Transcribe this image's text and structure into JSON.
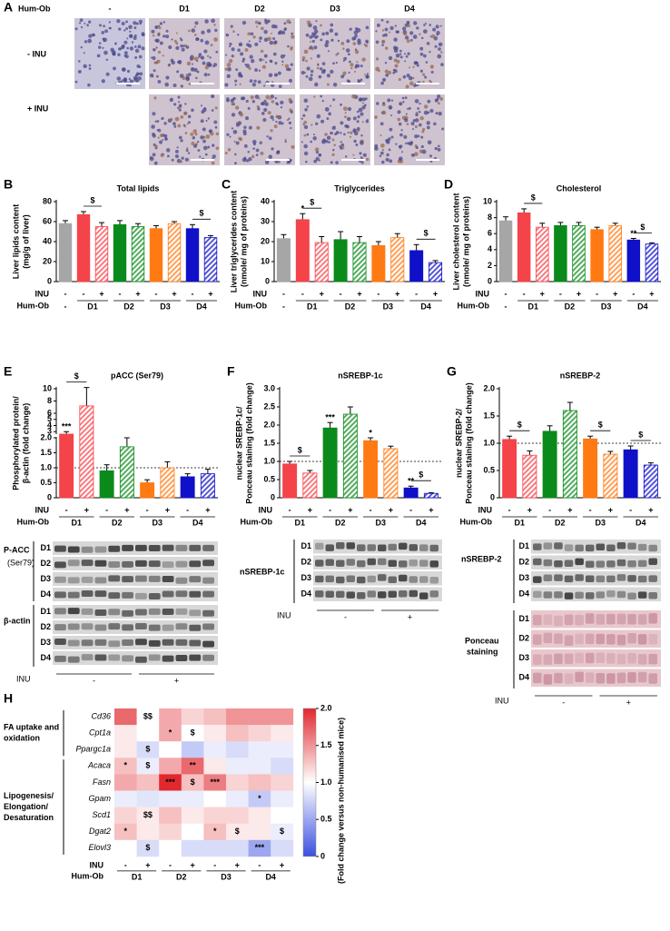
{
  "figure": {
    "panel_a": {
      "letter": "A",
      "hum_ob": "Hum-Ob",
      "columns": [
        "-",
        "D1",
        "D2",
        "D3",
        "D4"
      ],
      "rows": [
        "- INU",
        "+ INU"
      ]
    },
    "blot_e": {
      "labels": [
        "P-ACC",
        "(Ser79)"
      ],
      "loading": "β-actin",
      "lanes": [
        "D1",
        "D2",
        "D3",
        "D4"
      ],
      "inu": "INU",
      "inu_groups": [
        "-",
        "+"
      ]
    },
    "blot_f": {
      "label": "nSREBP-1c",
      "lanes": [
        "D1",
        "D2",
        "D3",
        "D4"
      ],
      "inu": "INU",
      "inu_groups": [
        "-",
        "+"
      ]
    },
    "blot_g": {
      "label": "nSREBP-2",
      "loading": [
        "Ponceau",
        "staining"
      ],
      "lanes": [
        "D1",
        "D2",
        "D3",
        "D4"
      ],
      "inu": "INU",
      "inu_groups": [
        "-",
        "+"
      ]
    }
  },
  "chart_data": [
    {
      "type": "bar",
      "panel": "B",
      "title": "Total lipids",
      "ylabel": [
        "Liver lipids content",
        "(mg/g of liver)"
      ],
      "inu_label": "INU",
      "group_label": "Hum-Ob",
      "categories": [
        "-",
        "-",
        "+",
        "-",
        "+",
        "-",
        "+",
        "-",
        "+"
      ],
      "groups": [
        "-",
        "D1",
        "D2",
        "D3",
        "D4"
      ],
      "values": [
        58,
        67,
        55,
        57,
        55,
        53,
        58,
        53,
        44
      ],
      "errors": [
        3,
        3,
        4,
        4,
        3,
        3,
        2,
        4,
        2
      ],
      "colors": [
        "#a6a6a6",
        "#f5434a",
        "#f5434a",
        "#0a8a1a",
        "#0a8a1a",
        "#ff7a12",
        "#ff7a12",
        "#1010c8",
        "#1010c8"
      ],
      "hatched": [
        false,
        false,
        true,
        false,
        true,
        false,
        true,
        false,
        true
      ],
      "annotations": [
        null,
        null,
        "$",
        null,
        null,
        null,
        null,
        null,
        "$"
      ],
      "ylim": [
        0,
        80
      ],
      "yticks": [
        0,
        20,
        40,
        60,
        80
      ]
    },
    {
      "type": "bar",
      "panel": "C",
      "title": "Triglycerides",
      "ylabel": [
        "Liver triglycerides content",
        "(nmole/ mg of proteins)"
      ],
      "inu_label": "INU",
      "group_label": "Hum-Ob",
      "categories": [
        "-",
        "-",
        "+",
        "-",
        "+",
        "-",
        "+",
        "-",
        "+"
      ],
      "groups": [
        "-",
        "D1",
        "D2",
        "D3",
        "D4"
      ],
      "values": [
        21.5,
        31,
        19.5,
        21,
        19.5,
        18,
        22,
        15.5,
        9.5
      ],
      "errors": [
        2,
        3,
        3,
        4,
        3,
        2,
        2,
        3,
        1
      ],
      "colors": [
        "#a6a6a6",
        "#f5434a",
        "#f5434a",
        "#0a8a1a",
        "#0a8a1a",
        "#ff7a12",
        "#ff7a12",
        "#1010c8",
        "#1010c8"
      ],
      "hatched": [
        false,
        false,
        true,
        false,
        true,
        false,
        true,
        false,
        true
      ],
      "annotations": [
        null,
        "*",
        "$",
        null,
        null,
        null,
        null,
        null,
        "$"
      ],
      "ylim": [
        0,
        40
      ],
      "yticks": [
        0,
        10,
        20,
        30,
        40
      ]
    },
    {
      "type": "bar",
      "panel": "D",
      "title": "Cholesterol",
      "ylabel": [
        "Liver cholesterol content",
        "(nmole/ mg of proteins)"
      ],
      "inu_label": "INU",
      "group_label": "Hum-Ob",
      "categories": [
        "-",
        "-",
        "+",
        "-",
        "+",
        "-",
        "+",
        "-",
        "+"
      ],
      "groups": [
        "-",
        "D1",
        "D2",
        "D3",
        "D4"
      ],
      "values": [
        7.6,
        8.6,
        6.8,
        7.0,
        7.0,
        6.5,
        7.0,
        5.2,
        4.7
      ],
      "errors": [
        0.5,
        0.5,
        0.5,
        0.4,
        0.4,
        0.3,
        0.3,
        0.2,
        0.15
      ],
      "colors": [
        "#a6a6a6",
        "#f5434a",
        "#f5434a",
        "#0a8a1a",
        "#0a8a1a",
        "#ff7a12",
        "#ff7a12",
        "#1010c8",
        "#1010c8"
      ],
      "hatched": [
        false,
        false,
        true,
        false,
        true,
        false,
        true,
        false,
        true
      ],
      "annotations": [
        null,
        null,
        "$",
        null,
        null,
        null,
        null,
        "**",
        "$"
      ],
      "ylim": [
        0,
        10
      ],
      "yticks": [
        0,
        2,
        4,
        6,
        8,
        10
      ]
    },
    {
      "type": "bar",
      "panel": "E",
      "title": "pACC (Ser79)",
      "ylabel": [
        "Phosphorylated protein/",
        "β-actin (fold change)"
      ],
      "inu_label": "INU",
      "group_label": "Hum-Ob",
      "categories": [
        "-",
        "+",
        "-",
        "+",
        "-",
        "+",
        "-",
        "+"
      ],
      "groups": [
        "D1",
        "D2",
        "D3",
        "D4"
      ],
      "values": [
        2.6,
        7.2,
        0.9,
        1.7,
        0.5,
        1.0,
        0.7,
        0.8
      ],
      "errors": [
        0.4,
        3,
        0.2,
        0.3,
        0.1,
        0.2,
        0.1,
        0.15
      ],
      "colors": [
        "#f5434a",
        "#f5434a",
        "#0a8a1a",
        "#0a8a1a",
        "#ff7a12",
        "#ff7a12",
        "#1010c8",
        "#1010c8"
      ],
      "hatched": [
        false,
        true,
        false,
        true,
        false,
        true,
        false,
        true
      ],
      "annotations": [
        "***",
        "$",
        null,
        null,
        null,
        null,
        null,
        null
      ],
      "ylim": [
        0,
        10
      ],
      "ybreak": 2,
      "yticks": [
        0,
        0.5,
        {
          "value": 1,
          "label": "1.0"
        },
        1.5,
        {
          "value": 2,
          "label": "2.0"
        },
        3,
        4,
        5,
        6,
        8,
        10
      ],
      "reference_line": 1
    },
    {
      "type": "bar",
      "panel": "F",
      "title": "nSREBP-1c",
      "ylabel": [
        "nuclear SREBP-1c/",
        "Ponceau staining (fold change)"
      ],
      "inu_label": "INU",
      "group_label": "Hum-Ob",
      "categories": [
        "-",
        "+",
        "-",
        "+",
        "-",
        "+",
        "-",
        "+"
      ],
      "groups": [
        "D1",
        "D2",
        "D3",
        "D4"
      ],
      "values": [
        0.93,
        0.68,
        1.92,
        2.3,
        1.57,
        1.35,
        0.27,
        0.12
      ],
      "errors": [
        0.07,
        0.07,
        0.15,
        0.2,
        0.08,
        0.07,
        0.05,
        0.02
      ],
      "colors": [
        "#f5434a",
        "#f5434a",
        "#0a8a1a",
        "#0a8a1a",
        "#ff7a12",
        "#ff7a12",
        "#1010c8",
        "#1010c8"
      ],
      "hatched": [
        false,
        true,
        false,
        true,
        false,
        true,
        false,
        true
      ],
      "annotations": [
        null,
        "$",
        "***",
        null,
        "*",
        null,
        "**",
        "$"
      ],
      "ylim": [
        0,
        3
      ],
      "yticks": [
        0,
        0.5,
        {
          "value": 1,
          "label": "1.0"
        },
        1.5,
        {
          "value": 2,
          "label": "2.0"
        },
        2.5,
        {
          "value": 3,
          "label": "3.0"
        }
      ],
      "reference_line": 1
    },
    {
      "type": "bar",
      "panel": "G",
      "title": "nSREBP-2",
      "ylabel": [
        "nuclear SREBP-2/",
        "Ponceau staining (fold change)"
      ],
      "inu_label": "INU",
      "group_label": "Hum-Ob",
      "categories": [
        "-",
        "+",
        "-",
        "+",
        "-",
        "+",
        "-",
        "+"
      ],
      "groups": [
        "D1",
        "D2",
        "D3",
        "D4"
      ],
      "values": [
        1.07,
        0.78,
        1.22,
        1.6,
        1.08,
        0.8,
        0.88,
        0.6
      ],
      "errors": [
        0.06,
        0.08,
        0.1,
        0.15,
        0.05,
        0.05,
        0.07,
        0.04
      ],
      "colors": [
        "#f5434a",
        "#f5434a",
        "#0a8a1a",
        "#0a8a1a",
        "#ff7a12",
        "#ff7a12",
        "#1010c8",
        "#1010c8"
      ],
      "hatched": [
        false,
        true,
        false,
        true,
        false,
        true,
        false,
        true
      ],
      "annotations": [
        null,
        "$",
        null,
        null,
        null,
        "$",
        null,
        "$"
      ],
      "ylim": [
        0,
        2
      ],
      "yticks": [
        0,
        0.5,
        {
          "value": 1,
          "label": "1.0"
        },
        1.5,
        {
          "value": 2,
          "label": "2.0"
        }
      ],
      "reference_line": 1
    },
    {
      "type": "heatmap",
      "panel": "H",
      "rows": [
        "Cd36",
        "Cpt1a",
        "Ppargc1a",
        "Acaca",
        "Fasn",
        "Gpam",
        "Scd1",
        "Dgat2",
        "Elovl3"
      ],
      "row_groups": [
        {
          "label": [
            "FA uptake and",
            "oxidation"
          ],
          "size": 3
        },
        {
          "label": [
            "Lipogenesis/",
            "Elongation/",
            "Desaturation"
          ],
          "size": 6
        }
      ],
      "inu_label": "INU",
      "group_label": "Hum-Ob",
      "categories": [
        "-",
        "+",
        "-",
        "+",
        "-",
        "+",
        "-",
        "+"
      ],
      "groups": [
        "D1",
        "D2",
        "D3",
        "D4"
      ],
      "values": [
        [
          1.7,
          1.0,
          1.4,
          1.2,
          1.3,
          1.5,
          1.5,
          1.5
        ],
        [
          1.1,
          1.0,
          1.4,
          1.0,
          1.1,
          1.3,
          1.2,
          1.1
        ],
        [
          1.1,
          0.8,
          1.0,
          0.7,
          0.9,
          0.8,
          0.9,
          0.9
        ],
        [
          1.3,
          0.9,
          1.4,
          1.7,
          1.1,
          0.9,
          0.9,
          0.8
        ],
        [
          1.4,
          1.3,
          2.0,
          1.3,
          1.6,
          1.2,
          1.3,
          1.2
        ],
        [
          0.9,
          0.85,
          0.9,
          0.9,
          1.0,
          0.9,
          0.7,
          0.9
        ],
        [
          1.2,
          1.1,
          1.3,
          1.1,
          1.2,
          1.2,
          1.1,
          1.0
        ],
        [
          1.3,
          1.1,
          1.2,
          1.0,
          1.3,
          1.1,
          1.1,
          0.9
        ],
        [
          1.0,
          0.8,
          1.0,
          0.8,
          0.8,
          0.8,
          0.5,
          0.8
        ]
      ],
      "annotations": [
        [
          null,
          "$$",
          null,
          null,
          null,
          null,
          null,
          null
        ],
        [
          null,
          null,
          "*",
          "$",
          null,
          null,
          null,
          null
        ],
        [
          null,
          "$",
          null,
          null,
          null,
          null,
          null,
          null
        ],
        [
          "*",
          "$",
          null,
          "**",
          null,
          null,
          null,
          null
        ],
        [
          null,
          null,
          "***",
          "$",
          "***",
          null,
          null,
          null
        ],
        [
          null,
          null,
          null,
          null,
          null,
          null,
          "*",
          null
        ],
        [
          null,
          "$$",
          null,
          null,
          null,
          null,
          null,
          null
        ],
        [
          "*",
          null,
          null,
          null,
          "*",
          "$",
          null,
          "$"
        ],
        [
          null,
          "$",
          null,
          null,
          null,
          null,
          "***",
          null
        ]
      ],
      "colorbar": {
        "lim": [
          0,
          2
        ],
        "ticks": [
          0,
          0.5,
          {
            "value": 1,
            "label": "1.0"
          },
          1.5,
          {
            "value": 2,
            "label": "2.0"
          }
        ],
        "label": "(Fold change versus non-humanised mice)",
        "colors": [
          "#3a4fe0",
          "#ffffff",
          "#e0282e"
        ]
      }
    }
  ]
}
